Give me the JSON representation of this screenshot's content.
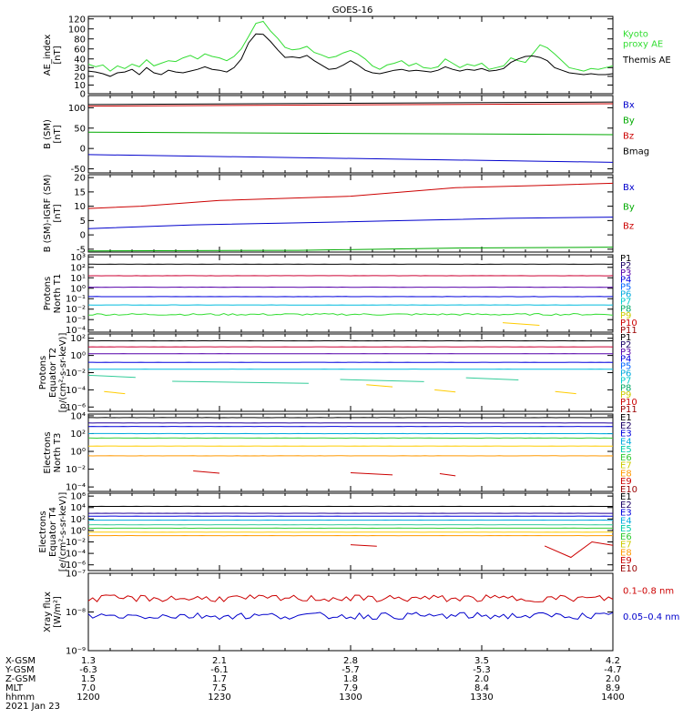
{
  "title": "GOES-16",
  "chart_data": [
    {
      "type": "line",
      "ylabel": "AE_index\n[nT]",
      "yticks": [
        0,
        10,
        20,
        30,
        40,
        60,
        80,
        100,
        120
      ],
      "ytick_labels": [
        "0",
        "10",
        "20",
        "30",
        "40",
        "60",
        "80",
        "100",
        "120"
      ],
      "ylim": [
        0,
        125
      ],
      "y_scale": "piecewise",
      "legend": [
        {
          "label": "Kyoto\nproxy AE",
          "color": "#33dd33"
        },
        {
          "label": "Themis AE",
          "color": "#000000"
        }
      ],
      "series": [
        {
          "name": "Kyoto proxy AE",
          "color": "#33dd33",
          "values": [
            34,
            31,
            33,
            26,
            32,
            29,
            34,
            31,
            39,
            32,
            35,
            38,
            37,
            42,
            47,
            40,
            50,
            45,
            42,
            38,
            45,
            60,
            85,
            111,
            115,
            96,
            81,
            63,
            58,
            60,
            65,
            53,
            48,
            42,
            45,
            52,
            57,
            50,
            40,
            32,
            28,
            33,
            35,
            38,
            32,
            35,
            30,
            29,
            31,
            40,
            35,
            30,
            34,
            32,
            35,
            28,
            30,
            32,
            42,
            38,
            36,
            50,
            68,
            62,
            50,
            38,
            30,
            28,
            26,
            29,
            28,
            30,
            32
          ]
        },
        {
          "name": "Themis AE",
          "color": "#000000",
          "values": [
            26,
            25,
            23,
            20,
            24,
            25,
            28,
            22,
            30,
            24,
            22,
            27,
            25,
            24,
            26,
            28,
            31,
            28,
            27,
            25,
            30,
            40,
            72,
            90,
            89,
            75,
            58,
            43,
            44,
            42,
            47,
            38,
            33,
            28,
            29,
            33,
            38,
            33,
            27,
            24,
            23,
            25,
            27,
            28,
            26,
            27,
            26,
            25,
            27,
            31,
            28,
            26,
            28,
            27,
            29,
            26,
            27,
            29,
            36,
            40,
            45,
            46,
            43,
            38,
            30,
            27,
            24,
            23,
            22,
            23,
            22,
            22,
            23
          ]
        }
      ]
    },
    {
      "type": "line",
      "ylabel": "B (SM)\n[nT]",
      "yticks": [
        -50,
        0,
        50,
        100
      ],
      "ytick_labels": [
        "-50",
        "0",
        "50",
        "100"
      ],
      "ylim": [
        -60,
        130
      ],
      "legend": [
        {
          "label": "Bx",
          "color": "#0000cc"
        },
        {
          "label": "By",
          "color": "#00aa00"
        },
        {
          "label": "Bz",
          "color": "#cc0000"
        },
        {
          "label": "Bmag",
          "color": "#000000"
        }
      ],
      "series": [
        {
          "name": "Bmag",
          "color": "#000000",
          "start": 108,
          "end": 114
        },
        {
          "name": "Bz",
          "color": "#cc0000",
          "start": 104,
          "end": 110
        },
        {
          "name": "By",
          "color": "#00aa00",
          "start": 40,
          "end": 34
        },
        {
          "name": "Bx",
          "color": "#0000cc",
          "start": -15,
          "end": -34
        }
      ]
    },
    {
      "type": "line",
      "ylabel": "B (SM)-IGRF (SM)\n[nT]",
      "yticks": [
        -5,
        0,
        5,
        10,
        15,
        20
      ],
      "ytick_labels": [
        "-5",
        "0",
        "5",
        "10",
        "15",
        "20"
      ],
      "ylim": [
        -6,
        21
      ],
      "legend": [
        {
          "label": "Bx",
          "color": "#0000cc"
        },
        {
          "label": "By",
          "color": "#00aa00"
        },
        {
          "label": "Bz",
          "color": "#cc0000"
        }
      ],
      "series": [
        {
          "name": "Bz",
          "color": "#cc0000",
          "points": [
            [
              0,
              9.2
            ],
            [
              0.1,
              10
            ],
            [
              0.25,
              12
            ],
            [
              0.5,
              13.5
            ],
            [
              0.7,
              16.5
            ],
            [
              0.85,
              17.2
            ],
            [
              1,
              18
            ]
          ]
        },
        {
          "name": "Bx",
          "color": "#0000cc",
          "points": [
            [
              0,
              2.2
            ],
            [
              0.2,
              3.5
            ],
            [
              0.4,
              4.2
            ],
            [
              0.6,
              5
            ],
            [
              0.8,
              5.8
            ],
            [
              1,
              6.2
            ]
          ]
        },
        {
          "name": "By",
          "color": "#00aa00",
          "points": [
            [
              0,
              -5.6
            ],
            [
              0.4,
              -5.4
            ],
            [
              0.7,
              -4.6
            ],
            [
              1,
              -4.3
            ]
          ]
        }
      ]
    },
    {
      "type": "line",
      "ylabel": "Protons\nNorth T1",
      "y_scale": "log",
      "yticks": [
        -4,
        -3,
        -2,
        -1,
        0,
        1,
        2,
        3
      ],
      "ytick_labels": [
        "10⁻⁴",
        "10⁻³",
        "10⁻²",
        "10⁻¹",
        "10⁰",
        "10¹",
        "10²",
        "10³"
      ],
      "ylim": [
        -4.2,
        3.2
      ],
      "legend_labels": [
        "P1",
        "P2",
        "P3",
        "P4",
        "P5",
        "P6",
        "P7",
        "P8",
        "P9",
        "P10",
        "P11"
      ],
      "legend_colors": [
        "#000000",
        "#1a0066",
        "#5500aa",
        "#0000dd",
        "#0066ff",
        "#00aadd",
        "#00cccc",
        "#00aa66",
        "#cccc00",
        "#cc0000",
        "#990000"
      ],
      "series": [
        {
          "name": "P1",
          "color": "#000000",
          "level": 2.3
        },
        {
          "name": "P2",
          "color": "#cc0033",
          "level": 1.2
        },
        {
          "name": "P3",
          "color": "#5500aa",
          "level": 0.1
        },
        {
          "name": "P4",
          "color": "#0000dd",
          "level": -0.8
        },
        {
          "name": "P5",
          "color": "#00bbdd",
          "level": -1.6
        },
        {
          "name": "P6",
          "color": "#33dd33",
          "level": -2.5,
          "noisy": true
        },
        {
          "name": "P9",
          "color": "#ffcc00",
          "segments": [
            [
              0.79,
              0.86,
              -3.3
            ]
          ]
        }
      ]
    },
    {
      "type": "line",
      "ylabel": "Protons\nEquator T2\n[p/(cm²-s-sr-keV)]",
      "y_scale": "log",
      "yticks": [
        -6,
        -4,
        -2,
        0,
        2
      ],
      "ytick_labels": [
        "10⁻⁶",
        "10⁻⁴",
        "10⁻²",
        "10⁰",
        "10²"
      ],
      "ylim": [
        -6.5,
        2.5
      ],
      "legend_labels": [
        "P1",
        "P2",
        "P3",
        "P4",
        "P5",
        "P6",
        "P7",
        "P8",
        "P9",
        "P10",
        "P11"
      ],
      "legend_colors": [
        "#000000",
        "#1a0066",
        "#5500aa",
        "#0000dd",
        "#0066ff",
        "#00aadd",
        "#00cccc",
        "#00aa66",
        "#cccc00",
        "#cc0000",
        "#990000"
      ],
      "series": [
        {
          "name": "P1",
          "color": "#000000",
          "level": 1.7
        },
        {
          "name": "P2",
          "color": "#cc0033",
          "level": 1.0
        },
        {
          "name": "P3",
          "color": "#5500aa",
          "level": 0.2
        },
        {
          "name": "P4",
          "color": "#0000dd",
          "level": -0.8
        },
        {
          "name": "P5",
          "color": "#00bbdd",
          "level": -1.6
        },
        {
          "name": "P6",
          "color": "#33cc99",
          "segments": [
            [
              0.0,
              0.09,
              -2.3
            ],
            [
              0.16,
              0.42,
              -3.0
            ],
            [
              0.48,
              0.64,
              -2.8
            ],
            [
              0.72,
              0.82,
              -2.6
            ]
          ]
        },
        {
          "name": "P8",
          "color": "#ffcc00",
          "segments": [
            [
              0.03,
              0.07,
              -4.2
            ],
            [
              0.53,
              0.58,
              -3.4
            ],
            [
              0.66,
              0.7,
              -4.0
            ],
            [
              0.89,
              0.93,
              -4.2
            ]
          ]
        }
      ]
    },
    {
      "type": "line",
      "ylabel": "Electrons\nNorth T3",
      "y_scale": "log",
      "yticks": [
        -4,
        -2,
        0,
        2,
        4
      ],
      "ytick_labels": [
        "10⁻⁴",
        "10⁻²",
        "10⁰",
        "10²",
        "10⁴"
      ],
      "ylim": [
        -4.5,
        4.2
      ],
      "legend_labels": [
        "E1",
        "E2",
        "E3",
        "E4",
        "E5",
        "E6",
        "E7",
        "E8",
        "E9",
        "E10"
      ],
      "legend_colors": [
        "#000000",
        "#1a0066",
        "#0000dd",
        "#00aadd",
        "#00ccaa",
        "#33cc33",
        "#cccc00",
        "#ff9900",
        "#cc0000",
        "#990000"
      ],
      "series": [
        {
          "name": "E1",
          "color": "#000000",
          "level": 3.8
        },
        {
          "name": "E2",
          "color": "#220099",
          "level": 3.2
        },
        {
          "name": "E3",
          "color": "#0000dd",
          "level": 2.8
        },
        {
          "name": "E4",
          "color": "#00aadd",
          "level": 2.0
        },
        {
          "name": "E5",
          "color": "#33cc33",
          "level": 1.5
        },
        {
          "name": "E6",
          "color": "#ffcc00",
          "level": 0.6
        },
        {
          "name": "E7",
          "color": "#ff9900",
          "level": -0.5
        },
        {
          "name": "E9",
          "color": "#cc0000",
          "segments": [
            [
              0.2,
              0.25,
              -2.2
            ],
            [
              0.5,
              0.58,
              -2.4
            ],
            [
              0.67,
              0.7,
              -2.5
            ]
          ]
        }
      ]
    },
    {
      "type": "line",
      "ylabel": "Electrons\nEquator T4\n[e/(cm²-s-sr-keV)]",
      "y_scale": "log",
      "yticks": [
        -6,
        -4,
        -2,
        0,
        2,
        4,
        6
      ],
      "ytick_labels": [
        "10⁻⁶",
        "10⁻⁴",
        "10⁻²",
        "10⁰",
        "10²",
        "10⁴",
        "10⁶"
      ],
      "ylim": [
        -7,
        6.5
      ],
      "legend_labels": [
        "E1",
        "E2",
        "E3",
        "E4",
        "E5",
        "E6",
        "E7",
        "E8",
        "E9",
        "E10"
      ],
      "legend_colors": [
        "#000000",
        "#1a0066",
        "#0000dd",
        "#00aadd",
        "#00ccaa",
        "#33cc33",
        "#cccc00",
        "#ff9900",
        "#cc0000",
        "#990000"
      ],
      "series": [
        {
          "name": "E1",
          "color": "#000000",
          "level": 4.2
        },
        {
          "name": "E2",
          "color": "#220099",
          "level": 3.0
        },
        {
          "name": "E3",
          "color": "#0000dd",
          "level": 2.5
        },
        {
          "name": "E4",
          "color": "#00aadd",
          "level": 1.8
        },
        {
          "name": "E5",
          "color": "#33cc99",
          "level": 1.0
        },
        {
          "name": "E6",
          "color": "#33cc33",
          "level": 0.4
        },
        {
          "name": "E7",
          "color": "#ffcc00",
          "level": -0.3
        },
        {
          "name": "E8",
          "color": "#ff9900",
          "level": -0.9
        },
        {
          "name": "E9",
          "color": "#cc0000",
          "segments": [
            [
              0.5,
              0.55,
              -2.5
            ]
          ],
          "dip": [
            [
              0.87,
              -2.7
            ],
            [
              0.92,
              -4.7
            ],
            [
              0.96,
              -2.0
            ],
            [
              1.0,
              -2.6
            ]
          ]
        }
      ]
    },
    {
      "type": "line",
      "ylabel": "Xray flux\n[W/m²]",
      "y_scale": "log",
      "yticks": [
        -9,
        -8,
        -7
      ],
      "ytick_labels": [
        "10⁻⁹",
        "10⁻⁸",
        "10⁻⁷"
      ],
      "ylim": [
        -9,
        -7
      ],
      "legend": [
        {
          "label": "0.1–0.8 nm",
          "color": "#cc0000"
        },
        {
          "label": "0.05–0.4 nm",
          "color": "#0000cc"
        }
      ],
      "series": [
        {
          "name": "0.1–0.8 nm",
          "color": "#cc0000",
          "level": -7.65,
          "noisy": true
        },
        {
          "name": "0.05–0.4 nm",
          "color": "#0000cc",
          "level": -8.1,
          "noisy": true
        }
      ]
    }
  ],
  "x_axis": {
    "labels": [
      "X-GSM",
      "Y-GSM",
      "Z-GSM",
      "MLT",
      "hhmm"
    ],
    "ticks": [
      [
        "1.3",
        "-6.3",
        "1.5",
        "7.0",
        "1200"
      ],
      [
        "2.1",
        "-6.1",
        "1.7",
        "7.5",
        "1230"
      ],
      [
        "2.8",
        "-5.7",
        "1.8",
        "7.9",
        "1300"
      ],
      [
        "3.5",
        "-5.3",
        "2.0",
        "8.4",
        "1330"
      ],
      [
        "4.2",
        "-4.7",
        "2.0",
        "8.9",
        "1400"
      ]
    ],
    "date": "2021 Jan 23"
  }
}
